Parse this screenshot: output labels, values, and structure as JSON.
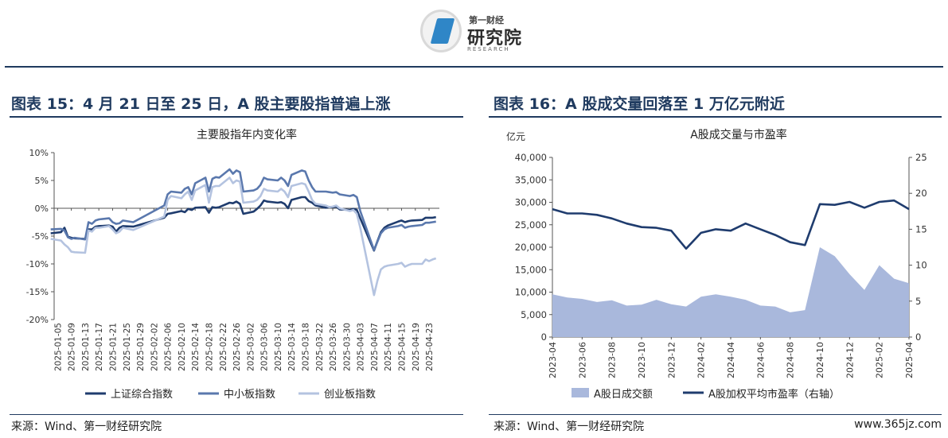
{
  "logo": {
    "top": "第一财经",
    "main": "研究院",
    "sub": "RESEARCH"
  },
  "left_panel": {
    "title": "图表 15：4 月 21 日至 25 日，A 股主要股指普遍上涨",
    "source": "来源：Wind、第一财经研究院"
  },
  "right_panel": {
    "title": "图表 16：A 股成交量回落至 1 万亿元附近",
    "source": "来源：Wind、第一财经研究院"
  },
  "watermark": "www.365jz.com",
  "chart_data": [
    {
      "type": "line",
      "title": "主要股指年内变化率",
      "x_tick_labels": [
        "2025-01-05",
        "2025-01-09",
        "2025-01-13",
        "2025-01-17",
        "2025-01-21",
        "2025-01-25",
        "2025-01-29",
        "2025-02-02",
        "2025-02-06",
        "2025-02-10",
        "2025-02-14",
        "2025-02-18",
        "2025-02-22",
        "2025-02-26",
        "2025-03-02",
        "2025-03-06",
        "2025-03-10",
        "2025-03-14",
        "2025-03-18",
        "2025-03-22",
        "2025-03-26",
        "2025-03-30",
        "2025-04-03",
        "2025-04-07",
        "2025-04-11",
        "2025-04-15",
        "2025-04-19",
        "2025-04-23"
      ],
      "y_ticks": [
        "10%",
        "5%",
        "0%",
        "-5%",
        "-10%",
        "-15%",
        "-20%"
      ],
      "ylim": [
        -20,
        10
      ],
      "legend_position": "bottom",
      "x": [
        "2025-01-03",
        "2025-01-06",
        "2025-01-07",
        "2025-01-08",
        "2025-01-09",
        "2025-01-10",
        "2025-01-13",
        "2025-01-14",
        "2025-01-15",
        "2025-01-16",
        "2025-01-17",
        "2025-01-20",
        "2025-01-21",
        "2025-01-22",
        "2025-01-23",
        "2025-01-24",
        "2025-01-27",
        "2025-02-05",
        "2025-02-06",
        "2025-02-07",
        "2025-02-10",
        "2025-02-11",
        "2025-02-12",
        "2025-02-13",
        "2025-02-14",
        "2025-02-17",
        "2025-02-18",
        "2025-02-19",
        "2025-02-20",
        "2025-02-21",
        "2025-02-24",
        "2025-02-25",
        "2025-02-26",
        "2025-02-27",
        "2025-02-28",
        "2025-03-03",
        "2025-03-04",
        "2025-03-05",
        "2025-03-06",
        "2025-03-07",
        "2025-03-10",
        "2025-03-11",
        "2025-03-12",
        "2025-03-13",
        "2025-03-14",
        "2025-03-17",
        "2025-03-18",
        "2025-03-19",
        "2025-03-20",
        "2025-03-21",
        "2025-03-24",
        "2025-03-25",
        "2025-03-26",
        "2025-03-27",
        "2025-03-28",
        "2025-03-31",
        "2025-04-01",
        "2025-04-02",
        "2025-04-03",
        "2025-04-07",
        "2025-04-08",
        "2025-04-09",
        "2025-04-10",
        "2025-04-11",
        "2025-04-14",
        "2025-04-15",
        "2025-04-16",
        "2025-04-17",
        "2025-04-18",
        "2025-04-21",
        "2025-04-22",
        "2025-04-23",
        "2025-04-24",
        "2025-04-25"
      ],
      "series": [
        {
          "name": "上证综合指数",
          "color": "#1f3c6e",
          "values": [
            -4.5,
            -4.3,
            -3.5,
            -5.1,
            -5.3,
            -5.4,
            -5.5,
            -3.8,
            -3.8,
            -3.3,
            -3.2,
            -3.1,
            -3.3,
            -4.2,
            -3.5,
            -3.2,
            -3.3,
            -1.7,
            -1.0,
            -0.9,
            -0.5,
            -0.7,
            -0.1,
            -0.3,
            0.1,
            0.2,
            -0.8,
            0.2,
            0.1,
            0.2,
            1.0,
            0.9,
            1.2,
            0.8,
            -1.0,
            -0.6,
            -0.1,
            0.5,
            1.4,
            1.2,
            1.0,
            1.1,
            0.8,
            0.0,
            1.5,
            2.0,
            2.0,
            1.3,
            1.0,
            0.5,
            0.1,
            0.2,
            0.2,
            0.3,
            -0.2,
            -0.3,
            -0.1,
            -0.3,
            -1.8,
            -7.6,
            -5.9,
            -4.3,
            -3.5,
            -3.1,
            -2.4,
            -2.2,
            -2.5,
            -2.3,
            -2.2,
            -2.1,
            -1.7,
            -1.7,
            -1.7,
            -1.6
          ]
        },
        {
          "name": "中小板指数",
          "color": "#5a78ad",
          "values": [
            -3.8,
            -3.7,
            -4.0,
            -5.2,
            -5.5,
            -5.3,
            -5.6,
            -2.5,
            -2.8,
            -2.2,
            -2.0,
            -1.8,
            -2.5,
            -2.8,
            -2.7,
            -2.2,
            -2.5,
            0.5,
            2.5,
            3.0,
            2.8,
            3.5,
            3.8,
            2.5,
            4.5,
            5.5,
            3.0,
            5.3,
            5.6,
            5.5,
            7.0,
            6.2,
            6.8,
            6.5,
            3.0,
            3.2,
            3.5,
            4.2,
            5.5,
            5.2,
            5.0,
            5.5,
            5.0,
            4.0,
            6.0,
            6.8,
            6.6,
            5.0,
            3.8,
            3.0,
            3.0,
            2.9,
            2.8,
            2.9,
            2.5,
            2.2,
            2.4,
            2.0,
            -0.5,
            -7.5,
            -6.0,
            -4.5,
            -3.8,
            -3.5,
            -3.2,
            -3.0,
            -3.5,
            -3.3,
            -3.2,
            -3.0,
            -2.6,
            -2.6,
            -2.5,
            -2.4
          ]
        },
        {
          "name": "创业板指数",
          "color": "#b4c3e0",
          "values": [
            -5.5,
            -5.8,
            -6.5,
            -7.0,
            -7.8,
            -7.9,
            -8.0,
            -4.0,
            -4.2,
            -3.5,
            -3.5,
            -3.2,
            -3.8,
            -4.5,
            -4.2,
            -3.5,
            -3.9,
            -1.5,
            1.5,
            2.2,
            1.8,
            2.5,
            3.0,
            1.5,
            3.2,
            4.2,
            1.0,
            3.8,
            4.0,
            4.0,
            5.5,
            4.5,
            5.0,
            4.8,
            1.0,
            1.2,
            1.5,
            2.2,
            3.5,
            3.2,
            3.0,
            3.5,
            3.0,
            2.0,
            4.0,
            4.5,
            4.3,
            3.0,
            1.5,
            0.8,
            0.5,
            0.2,
            0.3,
            0.5,
            0.0,
            -0.5,
            -0.3,
            -1.0,
            -3.5,
            -15.6,
            -13.0,
            -11.0,
            -10.5,
            -10.3,
            -10.0,
            -9.8,
            -10.5,
            -10.2,
            -10.0,
            -10.0,
            -9.2,
            -9.5,
            -9.2,
            -9.0
          ]
        }
      ]
    },
    {
      "type": "area",
      "title": "A股成交量与市盈率",
      "y_left_unit": "亿元",
      "y_left_ticks": [
        "40,000",
        "35,000",
        "30,000",
        "25,000",
        "20,000",
        "15,000",
        "10,000",
        "5,000",
        "0"
      ],
      "y_left_lim": [
        0,
        40000
      ],
      "y_right_ticks": [
        "25",
        "20",
        "15",
        "10",
        "5",
        "0"
      ],
      "y_right_lim": [
        0,
        25
      ],
      "x_tick_labels": [
        "2023-04",
        "2023-06",
        "2023-08",
        "2023-10",
        "2023-12",
        "2024-02",
        "2024-04",
        "2024-06",
        "2024-08",
        "2024-10",
        "2024-12",
        "2025-02",
        "2025-04"
      ],
      "x_range": [
        "2023-04",
        "2025-04"
      ],
      "legend_position": "bottom",
      "series": [
        {
          "name": "A股日成交额",
          "axis": "left",
          "kind": "area",
          "color": "#a9b8dc",
          "x": [
            "2023-04",
            "2023-05",
            "2023-06",
            "2023-07",
            "2023-08",
            "2023-09",
            "2023-10",
            "2023-11",
            "2023-12",
            "2024-01",
            "2024-02",
            "2024-03",
            "2024-04",
            "2024-05",
            "2024-06",
            "2024-07",
            "2024-08",
            "2024-09",
            "2024-10",
            "2024-11",
            "2024-12",
            "2025-01",
            "2025-02",
            "2025-03",
            "2025-04"
          ],
          "values": [
            9500,
            8800,
            8500,
            7800,
            8200,
            7000,
            7200,
            8300,
            7300,
            6800,
            9000,
            9500,
            9000,
            8300,
            7000,
            6800,
            5500,
            6000,
            20000,
            18000,
            14000,
            10500,
            16000,
            13000,
            12000
          ]
        },
        {
          "name": "A股加权平均市盈率（右轴）",
          "axis": "right",
          "kind": "line",
          "color": "#1f3c6e",
          "x": [
            "2023-04",
            "2023-05",
            "2023-06",
            "2023-07",
            "2023-08",
            "2023-09",
            "2023-10",
            "2023-11",
            "2023-12",
            "2024-01",
            "2024-02",
            "2024-03",
            "2024-04",
            "2024-05",
            "2024-06",
            "2024-07",
            "2024-08",
            "2024-09",
            "2024-10",
            "2024-11",
            "2024-12",
            "2025-01",
            "2025-02",
            "2025-03",
            "2025-04"
          ],
          "values": [
            17.8,
            17.2,
            17.2,
            17.0,
            16.5,
            15.8,
            15.3,
            15.2,
            14.8,
            12.3,
            14.5,
            15.0,
            14.8,
            15.8,
            15.0,
            14.2,
            13.2,
            12.8,
            18.5,
            18.4,
            18.8,
            18.0,
            18.8,
            19.0,
            17.8
          ]
        }
      ]
    }
  ]
}
